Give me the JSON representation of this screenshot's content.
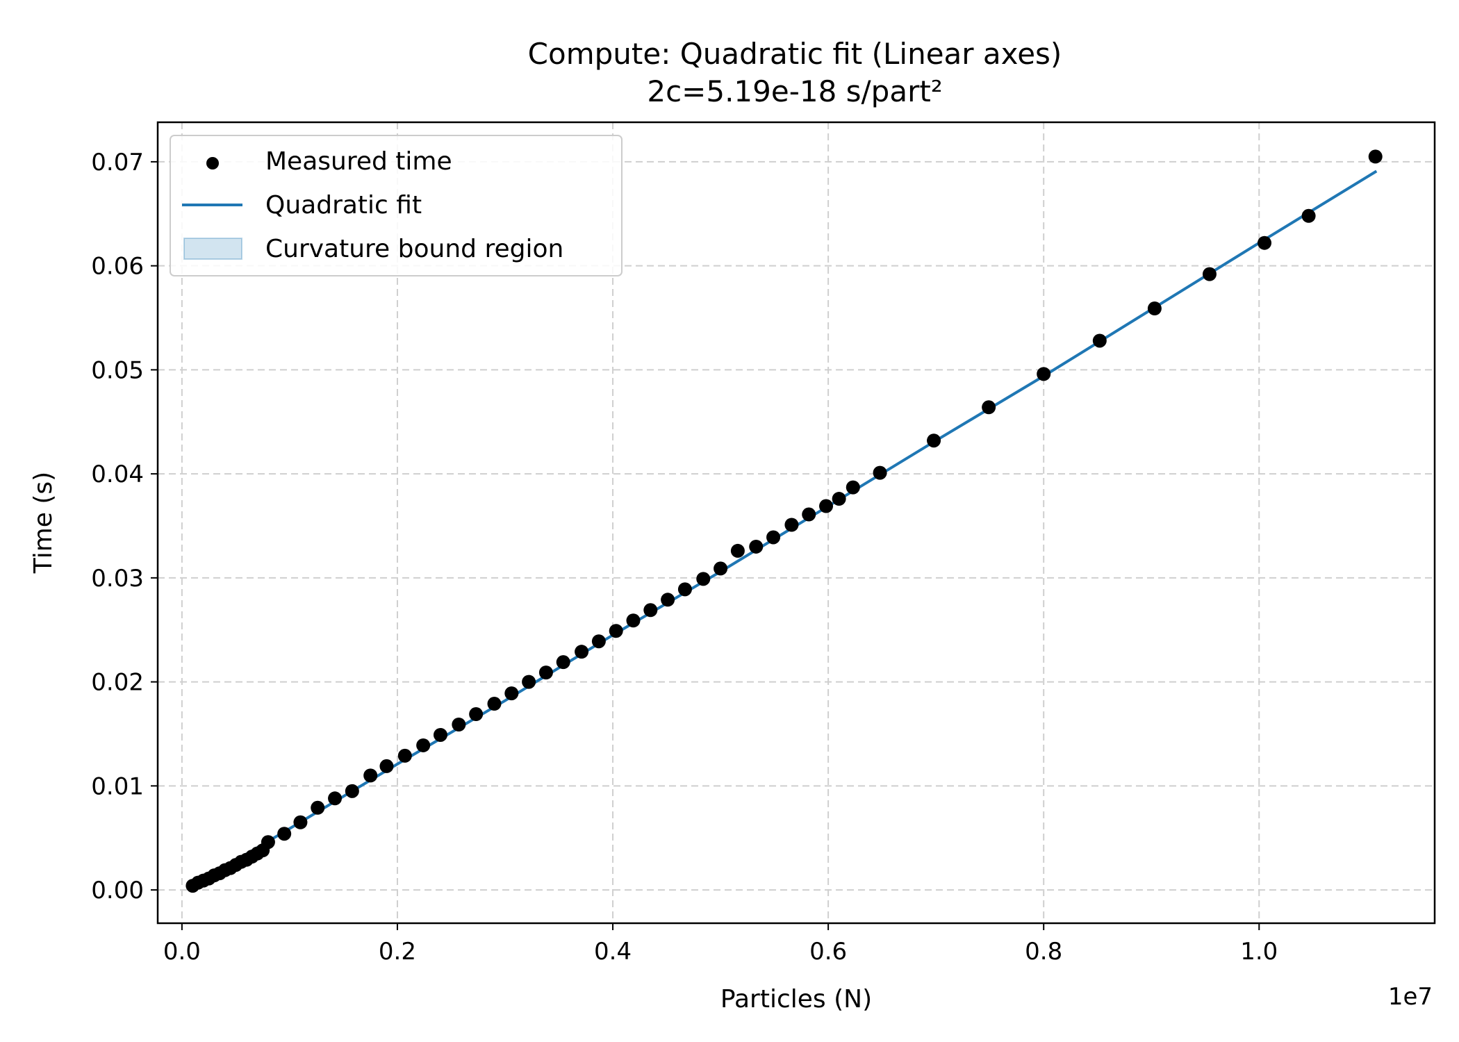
{
  "chart_data": {
    "type": "scatter",
    "title": "Compute: Quadratic fit (Linear axes)",
    "subtitle": "2c=5.19e-18 s/part²",
    "xlabel": "Particles (N)",
    "ylabel": "Time (s)",
    "x_offset_text": "1e7",
    "xlim": [
      -0.0225,
      1.163
    ],
    "ylim": [
      -0.0032,
      0.0738
    ],
    "x_ticks": [
      0.0,
      0.2,
      0.4,
      0.6,
      0.8,
      1.0
    ],
    "x_tick_labels": [
      "0.0",
      "0.2",
      "0.4",
      "0.6",
      "0.8",
      "1.0"
    ],
    "y_ticks": [
      0.0,
      0.01,
      0.02,
      0.03,
      0.04,
      0.05,
      0.06,
      0.07
    ],
    "y_tick_labels": [
      "0.00",
      "0.01",
      "0.02",
      "0.03",
      "0.04",
      "0.05",
      "0.06",
      "0.07"
    ],
    "grid": true,
    "legend_position": "top-left",
    "colors": {
      "points": "#000000",
      "fit": "#1f77b4",
      "band": "#1f77b4"
    },
    "series": [
      {
        "name": "Measured time",
        "kind": "scatter",
        "points": [
          [
            0.01,
            0.0004
          ],
          [
            0.015,
            0.0007
          ],
          [
            0.02,
            0.0009
          ],
          [
            0.025,
            0.0011
          ],
          [
            0.03,
            0.0014
          ],
          [
            0.035,
            0.0016
          ],
          [
            0.04,
            0.0019
          ],
          [
            0.045,
            0.0021
          ],
          [
            0.05,
            0.0024
          ],
          [
            0.055,
            0.0027
          ],
          [
            0.06,
            0.0029
          ],
          [
            0.065,
            0.0032
          ],
          [
            0.07,
            0.0035
          ],
          [
            0.075,
            0.0038
          ],
          [
            0.08,
            0.0046
          ],
          [
            0.095,
            0.0054
          ],
          [
            0.11,
            0.0065
          ],
          [
            0.126,
            0.0079
          ],
          [
            0.142,
            0.0088
          ],
          [
            0.158,
            0.0095
          ],
          [
            0.175,
            0.011
          ],
          [
            0.19,
            0.0119
          ],
          [
            0.207,
            0.0129
          ],
          [
            0.224,
            0.0139
          ],
          [
            0.24,
            0.0149
          ],
          [
            0.257,
            0.0159
          ],
          [
            0.273,
            0.0169
          ],
          [
            0.29,
            0.0179
          ],
          [
            0.306,
            0.0189
          ],
          [
            0.322,
            0.02
          ],
          [
            0.338,
            0.0209
          ],
          [
            0.354,
            0.0219
          ],
          [
            0.371,
            0.0229
          ],
          [
            0.387,
            0.0239
          ],
          [
            0.403,
            0.0249
          ],
          [
            0.419,
            0.0259
          ],
          [
            0.435,
            0.0269
          ],
          [
            0.451,
            0.0279
          ],
          [
            0.467,
            0.0289
          ],
          [
            0.484,
            0.0299
          ],
          [
            0.5,
            0.0309
          ],
          [
            0.516,
            0.0326
          ],
          [
            0.533,
            0.033
          ],
          [
            0.549,
            0.0339
          ],
          [
            0.566,
            0.0351
          ],
          [
            0.582,
            0.0361
          ],
          [
            0.598,
            0.0369
          ],
          [
            0.61,
            0.0376
          ],
          [
            0.623,
            0.0387
          ],
          [
            0.648,
            0.0401
          ],
          [
            0.698,
            0.0432
          ],
          [
            0.749,
            0.0464
          ],
          [
            0.8,
            0.0496
          ],
          [
            0.852,
            0.0528
          ],
          [
            0.903,
            0.0559
          ],
          [
            0.954,
            0.0592
          ],
          [
            1.005,
            0.0622
          ],
          [
            1.046,
            0.0648
          ],
          [
            1.108,
            0.0705
          ]
        ]
      },
      {
        "name": "Quadratic fit",
        "kind": "line",
        "x": [
          0.01,
          0.1,
          0.2,
          0.3,
          0.4,
          0.5,
          0.6,
          0.7,
          0.8,
          0.9,
          1.0,
          1.109
        ],
        "y": [
          0.0004,
          0.0059,
          0.0121,
          0.0182,
          0.0245,
          0.0306,
          0.0369,
          0.0432,
          0.0494,
          0.0558,
          0.0622,
          0.0691
        ]
      },
      {
        "name": "Curvature bound region",
        "kind": "band",
        "x": [
          0.01,
          0.1,
          0.2,
          0.3,
          0.4,
          0.5,
          0.6,
          0.7,
          0.8,
          0.9,
          1.0,
          1.109
        ],
        "lower": [
          0.0004,
          0.0059,
          0.0121,
          0.0182,
          0.0245,
          0.0306,
          0.0369,
          0.0432,
          0.0494,
          0.0558,
          0.0622,
          0.0691
        ],
        "upper": [
          0.0004,
          0.0059,
          0.0121,
          0.0182,
          0.0245,
          0.0306,
          0.0369,
          0.0432,
          0.0494,
          0.0558,
          0.0622,
          0.0691
        ]
      }
    ]
  }
}
